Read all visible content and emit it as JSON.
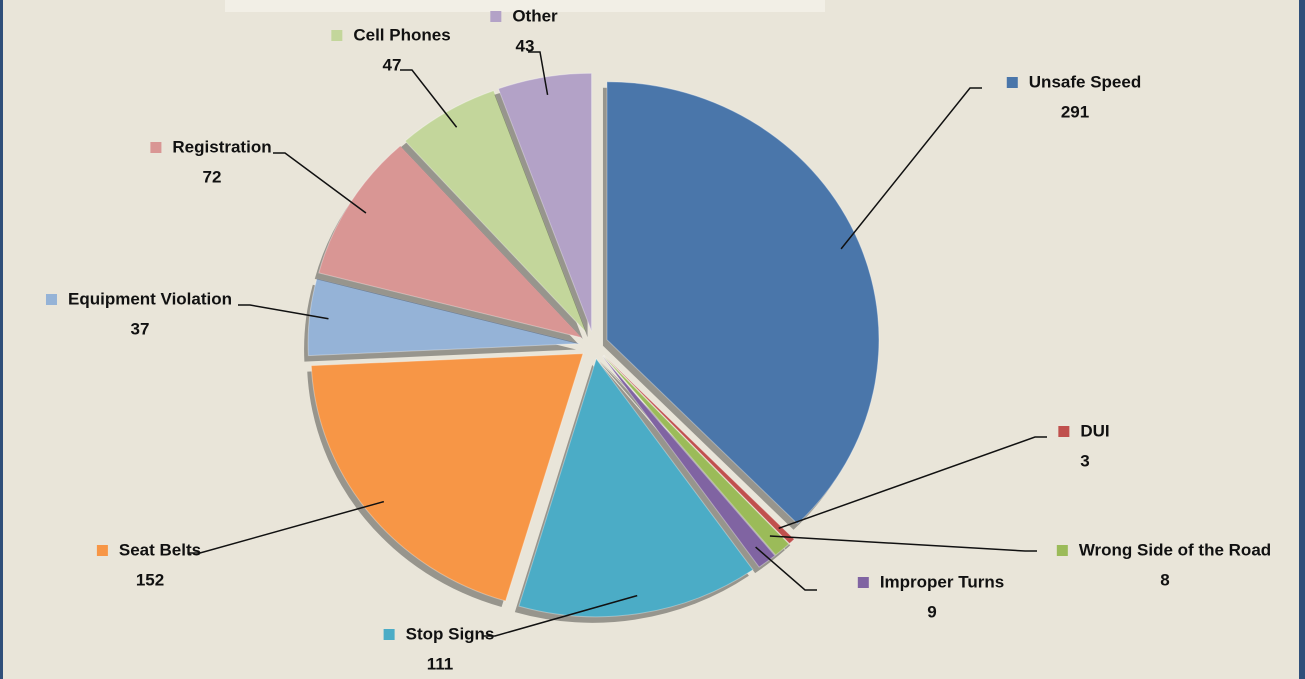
{
  "chart_data": {
    "type": "pie",
    "categories": [
      "Unsafe Speed",
      "DUI",
      "Wrong Side of the Road",
      "Improper Turns",
      "Stop Signs",
      "Seat Belts",
      "Equipment Violation",
      "Registration",
      "Cell Phones",
      "Other"
    ],
    "values": [
      291,
      3,
      8,
      9,
      111,
      152,
      37,
      72,
      47,
      43
    ],
    "colors": [
      "#4a76aa",
      "#c0504d",
      "#9bbb59",
      "#8064a2",
      "#4bacc6",
      "#f79646",
      "#95b3d7",
      "#d99694",
      "#c3d69b",
      "#b3a2c7"
    ]
  }
}
